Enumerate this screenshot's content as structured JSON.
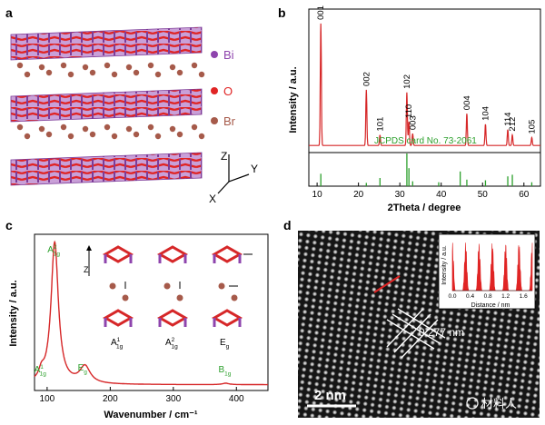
{
  "panel_labels": {
    "a": "a",
    "b": "b",
    "c": "c",
    "d": "d"
  },
  "panel_a": {
    "legend": [
      {
        "label": "Bi",
        "color": "#8e44ad"
      },
      {
        "label": "O",
        "color": "#e02424"
      },
      {
        "label": "Br",
        "color": "#a65a4a"
      }
    ],
    "axes": {
      "z": "Z",
      "y": "Y",
      "x": "X"
    }
  },
  "chart_data": [
    {
      "panel": "b",
      "type": "line",
      "xlabel": "2Theta / degree",
      "ylabel": "Intensity / a.u.",
      "xlim": [
        8,
        64
      ],
      "xticks": [
        "10",
        "20",
        "30",
        "40",
        "50",
        "60"
      ],
      "peaks": [
        {
          "x": 10.9,
          "h": 0.92,
          "label": "001"
        },
        {
          "x": 21.9,
          "h": 0.42,
          "label": "002"
        },
        {
          "x": 25.2,
          "h": 0.08,
          "label": "101"
        },
        {
          "x": 31.7,
          "h": 0.4,
          "label": "102"
        },
        {
          "x": 32.2,
          "h": 0.18,
          "label": "110"
        },
        {
          "x": 33.1,
          "h": 0.09,
          "label": "003"
        },
        {
          "x": 46.2,
          "h": 0.24,
          "label": "004"
        },
        {
          "x": 50.7,
          "h": 0.16,
          "label": "104"
        },
        {
          "x": 56.1,
          "h": 0.12,
          "label": "114"
        },
        {
          "x": 57.2,
          "h": 0.08,
          "label": "212"
        },
        {
          "x": 61.9,
          "h": 0.06,
          "label": "105"
        }
      ],
      "reference_label": "JCPDS card No. 73-2061",
      "reference_lines": [
        {
          "x": 10.9,
          "h": 0.38
        },
        {
          "x": 21.9,
          "h": 0.1
        },
        {
          "x": 25.2,
          "h": 0.25
        },
        {
          "x": 31.7,
          "h": 1.0
        },
        {
          "x": 32.2,
          "h": 0.55
        },
        {
          "x": 33.1,
          "h": 0.15
        },
        {
          "x": 39.4,
          "h": 0.12
        },
        {
          "x": 44.6,
          "h": 0.45
        },
        {
          "x": 46.2,
          "h": 0.2
        },
        {
          "x": 50.7,
          "h": 0.18
        },
        {
          "x": 56.1,
          "h": 0.3
        },
        {
          "x": 57.2,
          "h": 0.35
        },
        {
          "x": 61.9,
          "h": 0.12
        }
      ],
      "line_color": "#d62728",
      "reference_color": "#2ca02c"
    },
    {
      "panel": "c",
      "type": "line",
      "xlabel": "Wavenumber / cm⁻¹",
      "ylabel": "Intensity / a.u.",
      "xlim": [
        80,
        450
      ],
      "xticks": [
        "100",
        "200",
        "300",
        "400"
      ],
      "peaks": [
        {
          "x": 91,
          "h": 0.06,
          "w": 5
        },
        {
          "x": 112,
          "h": 1.0,
          "w": 7
        },
        {
          "x": 160,
          "h": 0.12,
          "w": 10
        },
        {
          "x": 383,
          "h": 0.01,
          "w": 6
        }
      ],
      "peak_labels": [
        {
          "x": 91,
          "text": "A",
          "sub": "1g",
          "sup": "1"
        },
        {
          "x": 112,
          "text": "A",
          "sub": "1g",
          "sup": "2"
        },
        {
          "x": 160,
          "text": "E",
          "sub": "g",
          "sup": ""
        },
        {
          "x": 383,
          "text": "B",
          "sub": "1g",
          "sup": ""
        }
      ],
      "mode_labels": [
        {
          "text": "A",
          "sub": "1g",
          "sup": "1"
        },
        {
          "text": "A",
          "sub": "1g",
          "sup": "2"
        },
        {
          "text": "E",
          "sub": "g",
          "sup": ""
        }
      ],
      "z_label": "Z",
      "line_color": "#d62728"
    }
  ],
  "panel_d": {
    "scale_bar": "2 nm",
    "d_spacing": "0.277 nm",
    "inset": {
      "ylabel": "Intensity / a.u.",
      "xlabel": "Distance / nm",
      "xticks": [
        "0.0",
        "0.4",
        "0.8",
        "1.2",
        "1.6"
      ]
    },
    "watermark": "材料人"
  }
}
